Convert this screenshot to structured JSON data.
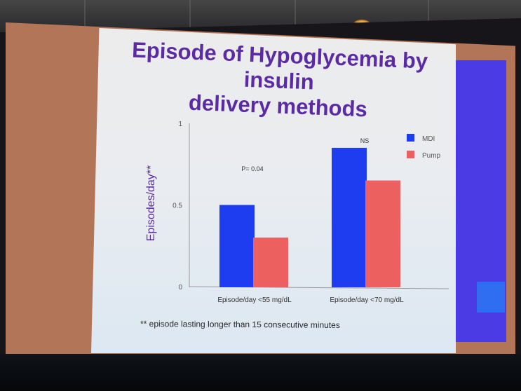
{
  "slide": {
    "title_line1": "Episode of Hypoglycemia by insulin",
    "title_line2": "delivery methods",
    "footnote": "** episode lasting longer than 15 consecutive minutes"
  },
  "colors": {
    "title": "#5a2ba3",
    "mdi": "#1f3df0",
    "pump": "#ec6060",
    "sidebar": "#4a3be5"
  },
  "chart_data": {
    "type": "bar",
    "categories": [
      "Episode/day <55 mg/dL",
      "Episode/day <70 mg/dL"
    ],
    "series": [
      {
        "name": "MDI",
        "values": [
          0.5,
          0.85
        ]
      },
      {
        "name": "Pump",
        "values": [
          0.3,
          0.65
        ]
      }
    ],
    "ylabel": "Episodes/day**",
    "xlabel": "",
    "ylim": [
      0,
      1
    ],
    "yticks": [
      "0",
      "0.5",
      "1"
    ],
    "annotations": [
      "P= 0.04",
      "NS"
    ],
    "legend": "top-right",
    "grid": false
  }
}
